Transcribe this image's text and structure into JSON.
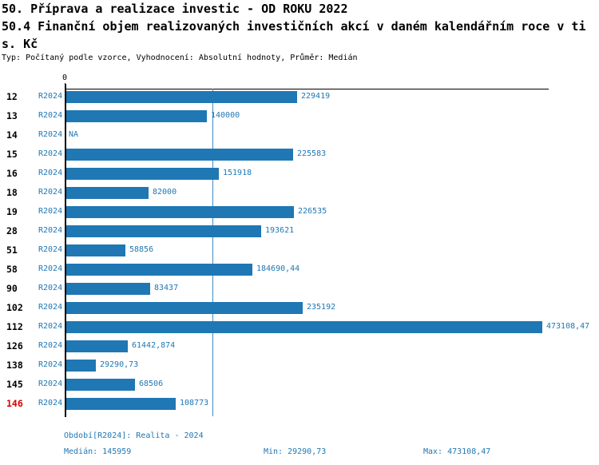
{
  "header": {
    "title": "50. Příprava a realizace investic - OD ROKU 2022",
    "subtitle_full": "50.4 Finanční objem realizovaných investičních akcí v daném kalendářním roce v tis. Kč",
    "subtitle_line1": "50.4 Finanční objem realizovaných investičních akcí v daném kalendářním roce v ti",
    "subtitle_line2": "s. Kč",
    "meta": "Typ: Počítaný podle vzorce, Vyhodnocení: Absolutní hodnoty, Průměr: Medián"
  },
  "chart_data": {
    "type": "bar",
    "orientation": "horizontal",
    "zero_label": "0",
    "xlim": [
      0,
      480000
    ],
    "grid": false,
    "series_name": "R2024",
    "categories": [
      "12",
      "13",
      "14",
      "15",
      "16",
      "18",
      "19",
      "28",
      "51",
      "58",
      "90",
      "102",
      "112",
      "126",
      "138",
      "145",
      "146"
    ],
    "rows": [
      {
        "category": "12",
        "period": "R2024",
        "value": 229419,
        "value_label": "229419",
        "highlight": false
      },
      {
        "category": "13",
        "period": "R2024",
        "value": 140000,
        "value_label": "140000",
        "highlight": false
      },
      {
        "category": "14",
        "period": "R2024",
        "value": null,
        "value_label": "NA",
        "highlight": false
      },
      {
        "category": "15",
        "period": "R2024",
        "value": 225583,
        "value_label": "225583",
        "highlight": false
      },
      {
        "category": "16",
        "period": "R2024",
        "value": 151918,
        "value_label": "151918",
        "highlight": false
      },
      {
        "category": "18",
        "period": "R2024",
        "value": 82000,
        "value_label": "82000",
        "highlight": false
      },
      {
        "category": "19",
        "period": "R2024",
        "value": 226535,
        "value_label": "226535",
        "highlight": false
      },
      {
        "category": "28",
        "period": "R2024",
        "value": 193621,
        "value_label": "193621",
        "highlight": false
      },
      {
        "category": "51",
        "period": "R2024",
        "value": 58856,
        "value_label": "58856",
        "highlight": false
      },
      {
        "category": "58",
        "period": "R2024",
        "value": 184690.44,
        "value_label": "184690,44",
        "highlight": false
      },
      {
        "category": "90",
        "period": "R2024",
        "value": 83437,
        "value_label": "83437",
        "highlight": false
      },
      {
        "category": "102",
        "period": "R2024",
        "value": 235192,
        "value_label": "235192",
        "highlight": false
      },
      {
        "category": "112",
        "period": "R2024",
        "value": 473108.47,
        "value_label": "473108,47",
        "highlight": false
      },
      {
        "category": "126",
        "period": "R2024",
        "value": 61442.874,
        "value_label": "61442,874",
        "highlight": false
      },
      {
        "category": "138",
        "period": "R2024",
        "value": 29290.73,
        "value_label": "29290,73",
        "highlight": false
      },
      {
        "category": "145",
        "period": "R2024",
        "value": 68506,
        "value_label": "68506",
        "highlight": false
      },
      {
        "category": "146",
        "period": "R2024",
        "value": 108773,
        "value_label": "108773",
        "highlight": true
      }
    ],
    "median_value": 145959,
    "min_value": 29290.73,
    "max_value": 473108.47,
    "bar_color": "#1f77b4",
    "median_line_color": "#3f8dc6",
    "highlight_color": "#d40000",
    "label_color": "#1f77b4"
  },
  "footer": {
    "period_info": "Období[R2024]: Realita - 2024",
    "median": "Medián: 145959",
    "min": "Min: 29290,73",
    "max": "Max: 473108,47"
  }
}
